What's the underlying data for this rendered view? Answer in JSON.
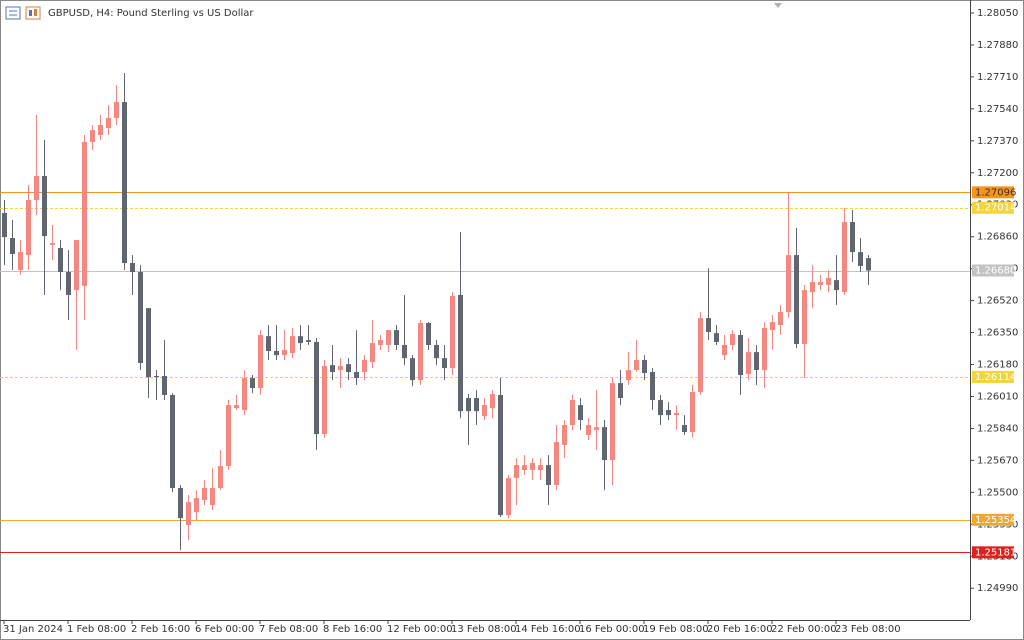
{
  "chart_data": {
    "type": "candlestick",
    "title": "GBPUSD, H4:  Pound Sterling vs US Dollar",
    "categories": [
      "31 Jan 2024",
      null,
      null,
      null,
      null,
      null,
      null,
      null,
      "1 Feb 08:00",
      null,
      null,
      null,
      null,
      null,
      null,
      null,
      "2 Feb 16:00",
      null,
      null,
      null,
      null,
      null,
      null,
      null,
      "6 Feb 00:00",
      null,
      null,
      null,
      null,
      null,
      null,
      null,
      "7 Feb 08:00",
      null,
      null,
      null,
      null,
      null,
      null,
      null,
      "8 Feb 16:00",
      null,
      null,
      null,
      null,
      null,
      null,
      null,
      "12 Feb 00:00",
      null,
      null,
      null,
      null,
      null,
      null,
      null,
      "13 Feb 08:00",
      null,
      null,
      null,
      null,
      null,
      null,
      null,
      "14 Feb 16:00",
      null,
      null,
      null,
      null,
      null,
      null,
      null,
      "16 Feb 00:00",
      null,
      null,
      null,
      null,
      null,
      null,
      null,
      "19 Feb 08:00",
      null,
      null,
      null,
      null,
      null,
      null,
      null,
      "20 Feb 16:00",
      null,
      null,
      null,
      null,
      null,
      null,
      null,
      "22 Feb 00:00",
      null,
      null,
      null,
      null,
      null,
      null,
      null,
      "23 Feb 08:00",
      null,
      null,
      null,
      null
    ],
    "open": [
      1.26986,
      1.26853,
      1.26683,
      1.26762,
      1.27055,
      1.27183,
      1.26816,
      1.268,
      1.26672,
      1.26576,
      1.26598,
      1.27364,
      1.27401,
      1.27438,
      1.27491,
      1.27576,
      1.2672,
      1.26672,
      1.2648,
      1.26119,
      1.26119,
      1.26018,
      1.25523,
      1.25326,
      1.25395,
      1.25459,
      1.25432,
      1.25523,
      1.2564,
      1.25948,
      1.25938,
      1.26108,
      1.26055,
      1.26331,
      1.26252,
      1.2623,
      1.26241,
      1.26331,
      1.2631,
      1.263,
      1.2581,
      1.26177,
      1.26151,
      1.26182,
      1.2614,
      1.2614,
      1.26193,
      1.26284,
      1.26284,
      1.26363,
      1.26284,
      1.26214,
      1.26097,
      1.26401,
      1.26284,
      1.26214,
      1.26161,
      1.2655,
      1.26002,
      1.26002,
      1.25906,
      1.25948,
      1.26018,
      1.25379,
      1.25576,
      1.25619,
      1.25619,
      1.25619,
      1.25645,
      1.25539,
      1.25752,
      1.25858,
      1.25964,
      1.25805,
      1.25831,
      1.25847,
      1.25672,
      1.26081,
      1.26097,
      1.26151,
      1.26204,
      1.2614,
      1.25991,
      1.25938,
      1.25911,
      1.25858,
      1.25821,
      1.26034,
      1.26427,
      1.26347,
      1.2623,
      1.26284,
      1.26337,
      1.26129,
      1.26246,
      1.26151,
      1.26363,
      1.2639,
      1.26459,
      1.26762,
      1.26289,
      1.26566,
      1.26603,
      1.26603,
      1.26629,
      1.26566,
      1.26938,
      1.26778,
      1.26746
    ],
    "high": [
      1.27055,
      1.26949,
      1.26842,
      1.27135,
      1.27507,
      1.27374,
      1.26922,
      1.26842,
      1.26789,
      1.26842,
      1.27401,
      1.27454,
      1.27507,
      1.2756,
      1.27667,
      1.27731,
      1.26762,
      1.26709,
      1.2648,
      1.26151,
      1.2631,
      1.26028,
      1.25539,
      1.25486,
      1.25512,
      1.25565,
      1.25629,
      1.25725,
      1.25991,
      1.26018,
      1.26151,
      1.26124,
      1.26363,
      1.2639,
      1.2639,
      1.26363,
      1.26374,
      1.2639,
      1.2639,
      1.26321,
      1.26204,
      1.26284,
      1.26214,
      1.26214,
      1.26363,
      1.2623,
      1.26417,
      1.26337,
      1.26363,
      1.2639,
      1.2655,
      1.2623,
      1.26417,
      1.26406,
      1.2631,
      1.26284,
      1.26566,
      1.26885,
      1.26023,
      1.26044,
      1.26002,
      1.26044,
      1.26108,
      1.25592,
      1.25682,
      1.25698,
      1.25682,
      1.25682,
      1.25698,
      1.25858,
      1.25885,
      1.26018,
      1.26002,
      1.25895,
      1.26044,
      1.25885,
      1.26108,
      1.26151,
      1.26246,
      1.2631,
      1.2623,
      1.26161,
      1.26018,
      1.2598,
      1.25964,
      1.25911,
      1.26071,
      1.26459,
      1.26693,
      1.2639,
      1.26337,
      1.26363,
      1.26363,
      1.26321,
      1.26284,
      1.26406,
      1.26443,
      1.26496,
      1.27098,
      1.26906,
      1.26603,
      1.26709,
      1.26656,
      1.26683,
      1.26762,
      1.27012,
      1.27002,
      1.26853,
      1.26762
    ],
    "low": [
      1.26709,
      1.26683,
      1.26656,
      1.26683,
      1.26975,
      1.2655,
      1.26736,
      1.26576,
      1.26417,
      1.26257,
      1.26417,
      1.27321,
      1.27374,
      1.27401,
      1.27454,
      1.26683,
      1.2655,
      1.26151,
      1.26002,
      1.25991,
      1.25991,
      1.25502,
      1.25193,
      1.25246,
      1.25353,
      1.25432,
      1.25406,
      1.25512,
      1.25619,
      1.25938,
      1.25911,
      1.26028,
      1.26018,
      1.26204,
      1.26204,
      1.26204,
      1.26214,
      1.26257,
      1.26284,
      1.25725,
      1.25789,
      1.26097,
      1.26055,
      1.26097,
      1.26071,
      1.26097,
      1.26161,
      1.26257,
      1.26246,
      1.26257,
      1.26177,
      1.26065,
      1.26071,
      1.26257,
      1.26177,
      1.26097,
      1.26124,
      1.25895,
      1.25752,
      1.25858,
      1.25885,
      1.25895,
      1.25369,
      1.25363,
      1.25432,
      1.25592,
      1.25565,
      1.25565,
      1.25432,
      1.25512,
      1.25682,
      1.25831,
      1.25831,
      1.25778,
      1.25725,
      1.25512,
      1.25539,
      1.25964,
      1.26071,
      1.2614,
      1.26097,
      1.25938,
      1.25858,
      1.25885,
      1.25831,
      1.25805,
      1.25794,
      1.26018,
      1.2631,
      1.26284,
      1.26204,
      1.26257,
      1.26018,
      1.26097,
      1.26071,
      1.26055,
      1.26257,
      1.26337,
      1.26427,
      1.26268,
      1.26108,
      1.2648,
      1.26576,
      1.26566,
      1.26496,
      1.2655,
      1.26725,
      1.26672,
      1.26603
    ],
    "close": [
      1.26858,
      1.26768,
      1.26778,
      1.27055,
      1.27183,
      1.26863,
      1.26826,
      1.26672,
      1.2655,
      1.26842,
      1.27364,
      1.27427,
      1.27454,
      1.27491,
      1.27576,
      1.2672,
      1.26672,
      1.26188,
      1.26113,
      1.26113,
      1.26018,
      1.25523,
      1.25363,
      1.25448,
      1.2547,
      1.25523,
      1.25523,
      1.2564,
      1.25964,
      1.25964,
      1.26108,
      1.26055,
      1.26337,
      1.26252,
      1.2623,
      1.26257,
      1.26331,
      1.26294,
      1.263,
      1.2581,
      1.26172,
      1.2614,
      1.26172,
      1.2614,
      1.26108,
      1.26204,
      1.26294,
      1.2631,
      1.26363,
      1.26284,
      1.26214,
      1.26097,
      1.26401,
      1.26284,
      1.26214,
      1.26161,
      1.26544,
      1.25932,
      1.25932,
      1.25932,
      1.25964,
      1.26023,
      1.25379,
      1.25576,
      1.25645,
      1.25645,
      1.25656,
      1.25645,
      1.25539,
      1.25768,
      1.25858,
      1.25991,
      1.25885,
      1.25858,
      1.25847,
      1.25672,
      1.26081,
      1.26002,
      1.26151,
      1.26204,
      1.26135,
      1.25991,
      1.25911,
      1.25911,
      1.25922,
      1.25821,
      1.26034,
      1.26427,
      1.26353,
      1.263,
      1.26284,
      1.26342,
      1.26124,
      1.26246,
      1.26151,
      1.26374,
      1.26406,
      1.26459,
      1.26762,
      1.26289,
      1.26576,
      1.26619,
      1.26619,
      1.2664,
      1.26576,
      1.26938,
      1.26778,
      1.26704,
      1.2668
    ],
    "bull_color": "#f4877f",
    "bear_color": "#5f6670",
    "ylim": [
      1.24821,
      1.28119
    ],
    "yticks": [
      {
        "value": 1.2805,
        "label": "1.28050"
      },
      {
        "value": 1.2788,
        "label": "1.27880"
      },
      {
        "value": 1.2771,
        "label": "1.27710"
      },
      {
        "value": 1.2754,
        "label": "1.27540"
      },
      {
        "value": 1.2737,
        "label": "1.27370"
      },
      {
        "value": 1.272,
        "label": "1.27200"
      },
      {
        "value": 1.2703,
        "label": "1.27030"
      },
      {
        "value": 1.2686,
        "label": "1.26860"
      },
      {
        "value": 1.2669,
        "label": "1.26690"
      },
      {
        "value": 1.2652,
        "label": "1.26520"
      },
      {
        "value": 1.2635,
        "label": "1.26350"
      },
      {
        "value": 1.2618,
        "label": "1.26180"
      },
      {
        "value": 1.2601,
        "label": "1.26010"
      },
      {
        "value": 1.2584,
        "label": "1.25840"
      },
      {
        "value": 1.2567,
        "label": "1.25670"
      },
      {
        "value": 1.255,
        "label": "1.25500"
      },
      {
        "value": 1.2533,
        "label": "1.25330"
      },
      {
        "value": 1.2516,
        "label": "1.25160"
      },
      {
        "value": 1.2499,
        "label": "1.24990"
      }
    ],
    "levels": [
      {
        "value": 1.27096,
        "label": "1.27096",
        "color": "#f7941d",
        "text_color": "#333333",
        "style": "solid"
      },
      {
        "value": 1.27014,
        "label": "1.27014",
        "color": "#f5d33a",
        "text_color": "#ffffff",
        "style": "dashed"
      },
      {
        "value": 1.2668,
        "label": "1.26680",
        "color": "#c3c3c3",
        "text_color": "#ffffff",
        "style": "solid"
      },
      {
        "value": 1.26114,
        "label": "1.26114",
        "color": "#f5d33a",
        "text_color": "#ffffff",
        "style": "dashed"
      },
      {
        "value": 1.25354,
        "label": "1.25354",
        "color": "#f0a830",
        "text_color": "#ffffff",
        "style": "solid"
      },
      {
        "value": 1.25181,
        "label": "1.25181",
        "color": "#e0201e",
        "text_color": "#ffffff",
        "style": "solid"
      }
    ]
  }
}
